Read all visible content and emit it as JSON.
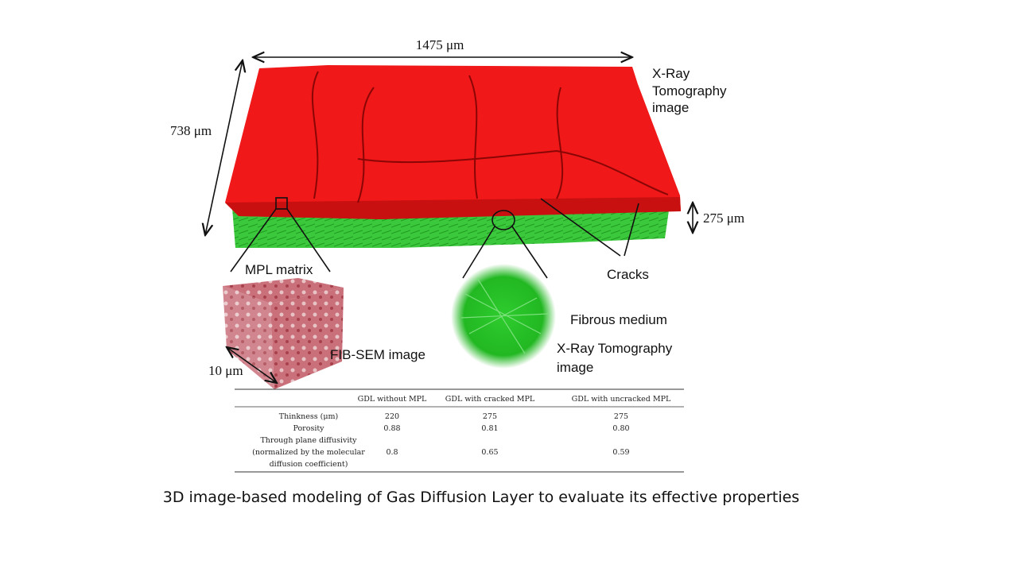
{
  "labels": {
    "width": "1475 μm",
    "depth": "738 μm",
    "thickness": "275 μm",
    "xray_top": [
      "X-Ray",
      "Tomography",
      "image"
    ],
    "mpl": "MPL matrix",
    "cracks": "Cracks",
    "fibrous": "Fibrous medium",
    "xray_fiber": [
      "X-Ray Tomography",
      "image"
    ],
    "fibsem": "FIB-SEM image",
    "cube_size": "10 μm"
  },
  "table": {
    "columns": [
      "GDL without MPL",
      "GDL with cracked MPL",
      "GDL with uncracked MPL"
    ],
    "rows": [
      {
        "label": [
          "Thinkness (μm)"
        ],
        "values": [
          "220",
          "275",
          "275"
        ]
      },
      {
        "label": [
          "Porosity"
        ],
        "values": [
          "0.88",
          "0.81",
          "0.80"
        ]
      },
      {
        "label": [
          "Through plane diffusivity",
          "(normalized by the molecular",
          "diffusion coefficient)"
        ],
        "values": [
          "0.8",
          "0.65",
          "0.59"
        ]
      }
    ]
  },
  "caption": "3D image-based modeling of Gas Diffusion Layer to evaluate its effective properties"
}
